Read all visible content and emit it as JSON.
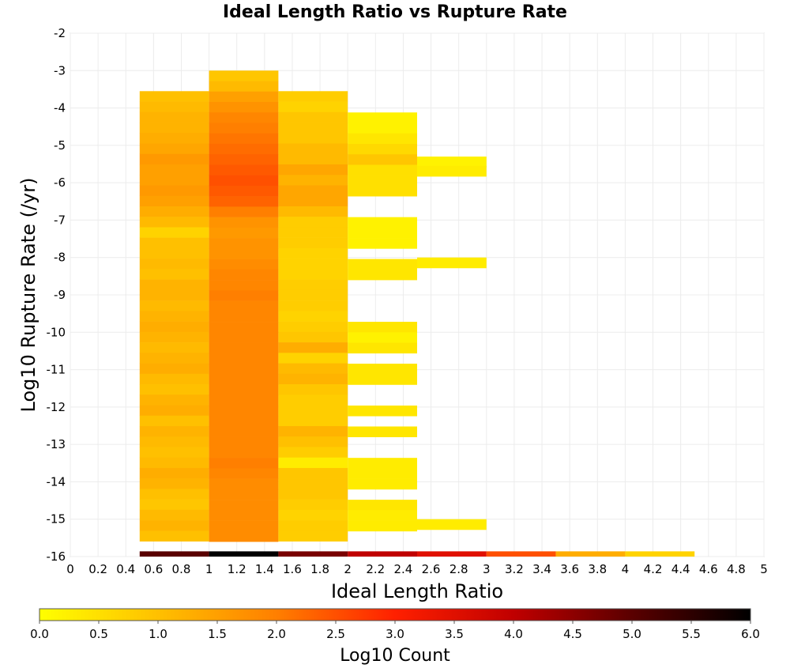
{
  "chart_data": {
    "type": "heatmap",
    "title": "Ideal Length Ratio vs Rupture Rate",
    "xlabel": "Ideal Length Ratio",
    "ylabel": "Log10 Rupture Rate (/yr)",
    "xlim": [
      0,
      5
    ],
    "ylim": [
      -16,
      -2
    ],
    "x_ticks": [
      "0",
      "0.2",
      "0.4",
      "0.6",
      "0.8",
      "1",
      "1.2",
      "1.4",
      "1.6",
      "1.8",
      "2",
      "2.2",
      "2.4",
      "2.6",
      "2.8",
      "3",
      "3.2",
      "3.4",
      "3.6",
      "3.8",
      "4",
      "4.2",
      "4.4",
      "4.6",
      "4.8",
      "5"
    ],
    "y_ticks": [
      "-2",
      "-3",
      "-4",
      "-5",
      "-6",
      "-7",
      "-8",
      "-9",
      "-10",
      "-11",
      "-12",
      "-13",
      "-14",
      "-15",
      "-16"
    ],
    "grid": true,
    "x_bin_width": 0.5,
    "y_bin_height": 0.28,
    "colorbar": {
      "label": "Log10 Count",
      "min": 0.0,
      "max": 6.0,
      "ticks": [
        "0.0",
        "0.5",
        "1.0",
        "1.5",
        "2.0",
        "2.5",
        "3.0",
        "3.5",
        "4.0",
        "4.5",
        "5.0",
        "5.5",
        "6.0"
      ],
      "colors": [
        "#ffff00",
        "#ffc000",
        "#ff7f00",
        "#ff2000",
        "#c00000",
        "#5a0000",
        "#000000"
      ]
    },
    "columns": [
      {
        "x_range": [
          0.5,
          1.0
        ],
        "y_top": -3.55,
        "values": [
          1.0,
          1.1,
          1.2,
          1.2,
          1.3,
          1.4,
          1.6,
          1.5,
          1.5,
          1.6,
          1.5,
          1.3,
          1.1,
          0.7,
          1.0,
          1.0,
          1.1,
          1.0,
          1.2,
          1.2,
          1.1,
          1.2,
          1.3,
          1.2,
          1.1,
          1.2,
          1.3,
          1.1,
          1.0,
          1.2,
          1.3,
          1.0,
          1.2,
          1.1,
          1.0,
          1.1,
          1.3,
          1.2,
          1.0,
          0.9,
          1.1,
          1.2,
          1.0,
          1.0,
          1.1,
          1.0,
          1.0
        ]
      },
      {
        "x_range": [
          1.0,
          1.5
        ],
        "y_top": -3.0,
        "values": [
          0.9,
          1.1,
          1.5,
          1.7,
          1.9,
          2.0,
          2.1,
          2.2,
          2.3,
          2.4,
          2.5,
          2.4,
          2.3,
          2.0,
          1.7,
          1.6,
          1.7,
          1.7,
          1.8,
          1.9,
          1.9,
          2.0,
          1.9,
          1.9,
          1.9,
          1.9,
          1.9,
          1.9,
          1.9,
          1.9,
          1.9,
          1.9,
          1.9,
          1.9,
          1.9,
          1.9,
          1.9,
          2.0,
          1.9,
          1.8,
          1.8,
          1.8,
          1.8,
          1.8,
          1.8,
          1.8,
          1.8,
          1.8,
          1.8
        ]
      },
      {
        "x_range": [
          1.5,
          2.0
        ],
        "y_top": -3.55,
        "values": [
          0.8,
          0.7,
          0.9,
          0.9,
          0.9,
          1.1,
          1.1,
          1.4,
          1.2,
          1.4,
          1.4,
          1.1,
          0.8,
          0.8,
          0.8,
          0.7,
          0.7,
          0.7,
          0.8,
          0.8,
          0.8,
          0.7,
          0.8,
          0.9,
          1.3,
          0.7,
          1.1,
          1.2,
          0.9,
          0.8,
          0.8,
          0.8,
          1.2,
          1.0,
          0.8,
          0.3,
          0.9,
          0.9,
          0.9,
          0.8,
          0.7,
          0.8,
          0.8,
          0.8,
          0.7,
          0.8,
          0.8,
          0.8,
          1.0
        ]
      },
      {
        "x_range": [
          2.0,
          2.5
        ],
        "y_top": -4.12,
        "values": [
          0.2,
          0.2,
          0.4,
          0.6,
          0.9,
          0.5,
          0.5,
          0.5,
          null,
          null,
          0.2,
          0.2,
          0.2,
          null,
          0.4,
          0.4,
          null,
          null,
          null,
          null,
          0.4,
          0.2,
          0.4,
          null,
          0.4,
          0.4,
          null,
          null,
          0.4,
          null,
          0.4,
          null,
          null,
          0.3,
          0.3,
          0.3,
          null,
          0.4,
          0.3,
          0.3,
          null,
          null
        ]
      },
      {
        "x_range": [
          2.5,
          3.0
        ],
        "cells": [
          {
            "y": -5.3,
            "value": 0.2
          },
          {
            "y": -5.55,
            "value": 0.3
          },
          {
            "y": -8.0,
            "value": 0.3
          },
          {
            "y": -15.0,
            "value": 0.3
          }
        ]
      }
    ],
    "bottom_row": {
      "y": -16.0,
      "values": [
        {
          "x_range": [
            0.5,
            1.0
          ],
          "value": 5.0
        },
        {
          "x_range": [
            1.0,
            1.5
          ],
          "value": 6.0
        },
        {
          "x_range": [
            1.5,
            2.0
          ],
          "value": 4.7
        },
        {
          "x_range": [
            2.0,
            2.5
          ],
          "value": 4.0
        },
        {
          "x_range": [
            2.5,
            3.0
          ],
          "value": 3.5
        },
        {
          "x_range": [
            3.0,
            3.5
          ],
          "value": 2.5
        },
        {
          "x_range": [
            3.5,
            4.0
          ],
          "value": 1.3
        },
        {
          "x_range": [
            4.0,
            4.5
          ],
          "value": 0.7
        }
      ]
    }
  }
}
